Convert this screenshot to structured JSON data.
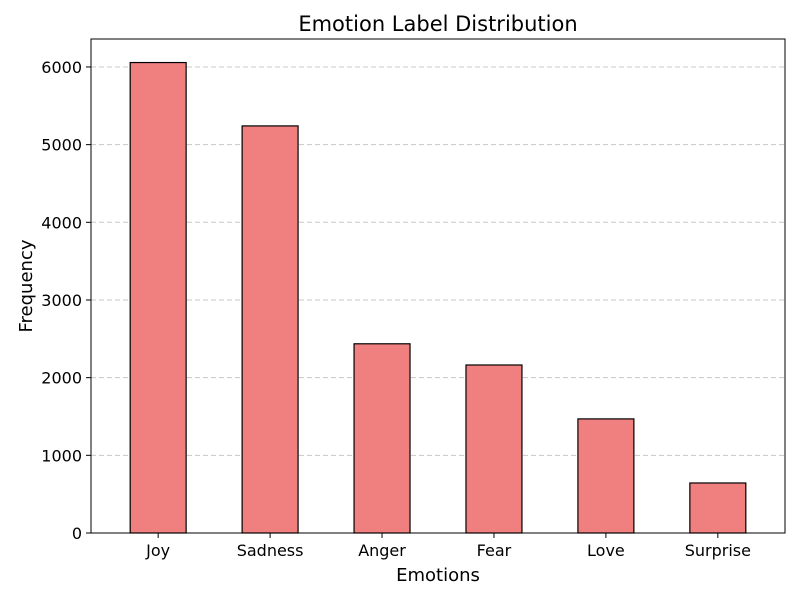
{
  "chart_data": {
    "type": "bar",
    "title": "Emotion Label Distribution",
    "xlabel": "Emotions",
    "ylabel": "Frequency",
    "categories": [
      "Joy",
      "Sadness",
      "Anger",
      "Fear",
      "Love",
      "Surprise"
    ],
    "values": [
      6057,
      5241,
      2436,
      2163,
      1469,
      644
    ],
    "ylim": [
      0,
      6360
    ],
    "yticks": [
      0,
      1000,
      2000,
      3000,
      4000,
      5000,
      6000
    ],
    "grid": "y-dashed",
    "bar_color": "#f08080",
    "edge_color": "#000000",
    "legend": "none"
  }
}
